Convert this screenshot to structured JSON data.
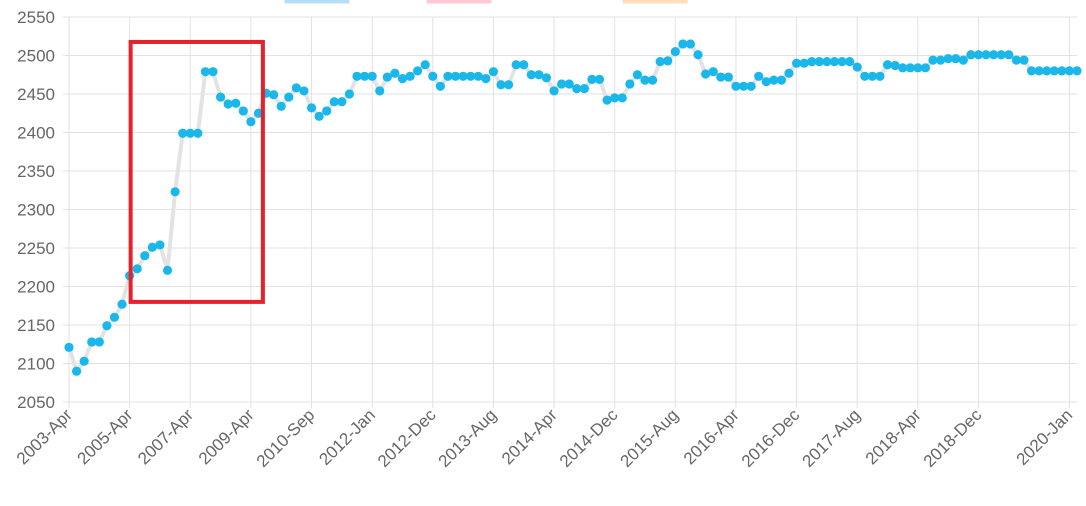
{
  "chart_data": {
    "type": "line",
    "title": "",
    "xlabel": "",
    "ylabel": "",
    "ylim": [
      2050,
      2550
    ],
    "ytick_step": 50,
    "grid": true,
    "legend": {
      "placement": "top",
      "entries": [
        {
          "name": "",
          "color": "#36a2eb"
        },
        {
          "name": "",
          "color": "#ff6384"
        },
        {
          "name": "",
          "color": "#ff9f40"
        }
      ]
    },
    "x_tick_labels": [
      {
        "index": 0,
        "label": "2003-Apr"
      },
      {
        "index": 8,
        "label": "2005-Apr"
      },
      {
        "index": 16,
        "label": "2007-Apr"
      },
      {
        "index": 24,
        "label": "2009-Apr"
      },
      {
        "index": 32,
        "label": "2010-Sep"
      },
      {
        "index": 40,
        "label": "2012-Jan"
      },
      {
        "index": 48,
        "label": "2012-Dec"
      },
      {
        "index": 56,
        "label": "2013-Aug"
      },
      {
        "index": 64,
        "label": "2014-Apr"
      },
      {
        "index": 72,
        "label": "2014-Dec"
      },
      {
        "index": 80,
        "label": "2015-Aug"
      },
      {
        "index": 88,
        "label": "2016-Apr"
      },
      {
        "index": 96,
        "label": "2016-Dec"
      },
      {
        "index": 104,
        "label": "2017-Aug"
      },
      {
        "index": 112,
        "label": "2018-Apr"
      },
      {
        "index": 120,
        "label": "2018-Dec"
      },
      {
        "index": 132,
        "label": "2020-Jan"
      }
    ],
    "series": [
      {
        "line_color": "#e3e3e3",
        "point_color": "#1ab7ea",
        "values": [
          2121,
          2090,
          2103,
          2128,
          2128,
          2149,
          2160,
          2177,
          2214,
          2223,
          2240,
          2251,
          2254,
          2221,
          2323,
          2399,
          2399,
          2399,
          2479,
          2479,
          2446,
          2437,
          2438,
          2428,
          2414,
          2425,
          2451,
          2449,
          2434,
          2446,
          2458,
          2454,
          2432,
          2421,
          2428,
          2440,
          2440,
          2450,
          2473,
          2473,
          2473,
          2454,
          2472,
          2477,
          2470,
          2473,
          2480,
          2488,
          2473,
          2460,
          2473,
          2473,
          2473,
          2473,
          2473,
          2470,
          2479,
          2462,
          2462,
          2488,
          2488,
          2475,
          2475,
          2471,
          2454,
          2463,
          2463,
          2457,
          2457,
          2469,
          2469,
          2442,
          2445,
          2445,
          2463,
          2475,
          2468,
          2468,
          2492,
          2493,
          2505,
          2515,
          2515,
          2501,
          2476,
          2479,
          2472,
          2472,
          2460,
          2460,
          2460,
          2473,
          2466,
          2468,
          2468,
          2477,
          2490,
          2490,
          2492,
          2492,
          2492,
          2492,
          2492,
          2492,
          2485,
          2473,
          2473,
          2473,
          2488,
          2487,
          2484,
          2484,
          2484,
          2484,
          2494,
          2494,
          2496,
          2496,
          2494,
          2501,
          2501,
          2501,
          2501,
          2501,
          2501,
          2494,
          2494,
          2480,
          2480,
          2480,
          2480,
          2480,
          2480,
          2480
        ]
      }
    ],
    "annotations": [
      {
        "type": "highlight-box",
        "color": "#e8202a",
        "from_label": "2005-Apr",
        "to_label": "2009-Apr",
        "y_range": [
          2180,
          2515
        ]
      }
    ]
  }
}
